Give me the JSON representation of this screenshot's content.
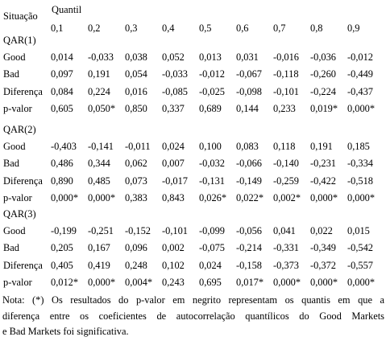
{
  "header": {
    "row_label": "Situação",
    "quantil_label": "Quantil",
    "quantiles": [
      "0,1",
      "0,2",
      "0,3",
      "0,4",
      "0,5",
      "0,6",
      "0,7",
      "0,8",
      "0,9"
    ]
  },
  "sections": [
    {
      "title": "QAR(1)",
      "rows": [
        {
          "label": "Good",
          "values": [
            "0,014",
            "-0,033",
            "0,038",
            "0,052",
            "0,013",
            "0,031",
            "-0,016",
            "-0,036",
            "-0,012"
          ]
        },
        {
          "label": "Bad",
          "values": [
            "0,097",
            "0,191",
            "0,054",
            "-0,033",
            "-0,012",
            "-0,067",
            "-0,118",
            "-0,260",
            "-0,449"
          ]
        },
        {
          "label": "Diferença",
          "values": [
            "0,084",
            "0,224",
            "0,016",
            "-0,085",
            "-0,025",
            "-0,098",
            "-0,101",
            "-0,224",
            "-0,437"
          ]
        },
        {
          "label": "p-valor",
          "values": [
            "0,605",
            "0,050*",
            "0,850",
            "0,337",
            "0,689",
            "0,144",
            "0,233",
            "0,019*",
            "0,000*"
          ]
        }
      ]
    },
    {
      "title": "QAR(2)",
      "rows": [
        {
          "label": "Good",
          "values": [
            "-0,403",
            "-0,141",
            "-0,011",
            "0,024",
            "0,100",
            "0,083",
            "0,118",
            "0,191",
            "0,185"
          ]
        },
        {
          "label": "Bad",
          "values": [
            "0,486",
            "0,344",
            "0,062",
            "0,007",
            "-0,032",
            "-0,066",
            "-0,140",
            "-0,231",
            "-0,334"
          ]
        },
        {
          "label": "Diferença",
          "values": [
            "0,890",
            "0,485",
            "0,073",
            "-0,017",
            "-0,131",
            "-0,149",
            "-0,259",
            "-0,422",
            "-0,518"
          ]
        },
        {
          "label": "p-valor",
          "values": [
            "0,000*",
            "0,000*",
            "0,383",
            "0,843",
            "0,026*",
            "0,022*",
            "0,002*",
            "0,000*",
            "0,000*"
          ]
        }
      ]
    },
    {
      "title": "QAR(3)",
      "rows": [
        {
          "label": "Good",
          "values": [
            "-0,199",
            "-0,251",
            "-0,152",
            "-0,101",
            "-0,099",
            "-0,056",
            "0,041",
            "0,022",
            "0,015"
          ]
        },
        {
          "label": "Bad",
          "values": [
            "0,205",
            "0,167",
            "0,096",
            "0,002",
            "-0,075",
            "-0,214",
            "-0,331",
            "-0,349",
            "-0,542"
          ]
        },
        {
          "label": "Diferença",
          "values": [
            "0,405",
            "0,419",
            "0,248",
            "0,102",
            "0,024",
            "-0,158",
            "-0,373",
            "-0,372",
            "-0,557"
          ]
        },
        {
          "label": "p-valor",
          "values": [
            "0,012*",
            "0,000*",
            "0,004*",
            "0,243",
            "0,695",
            "0,017*",
            "0,000*",
            "0,000*",
            "0,000*"
          ]
        }
      ]
    }
  ],
  "note": {
    "lines": [
      "Nota: (*) Os resultados do p-valor em negrito representam os quantis em que a",
      "diferença entre os coeficientes de autocorrelação quantílicos do Good Markets",
      "e Bad Markets foi significativa."
    ]
  }
}
